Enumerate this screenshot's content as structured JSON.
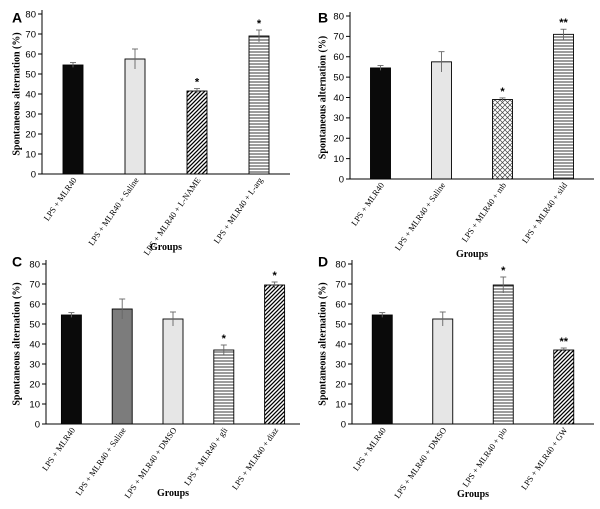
{
  "chart_data": [
    {
      "panel": "A",
      "type": "bar",
      "ylabel": "Spontaneous alternation (%)",
      "xlabel": "Groups",
      "ylim": [
        0,
        80
      ],
      "yticks": [
        0,
        10,
        20,
        30,
        40,
        50,
        60,
        70,
        80
      ],
      "categories": [
        "LPS + MLR40",
        "LPS + MLR40 + Saline",
        "LPS + MLR40 + L-NAME",
        "LPS + MLR40 + L-arg"
      ],
      "values": [
        54.5,
        57.5,
        41.5,
        69
      ],
      "errors": [
        1.2,
        5,
        1.2,
        3
      ],
      "significance": [
        "",
        "",
        "*",
        "*"
      ],
      "patterns": [
        "black",
        "lightgray",
        "diag",
        "hlines"
      ]
    },
    {
      "panel": "B",
      "type": "bar",
      "ylabel": "Spontaneous alternation (%)",
      "xlabel": "Groups",
      "ylim": [
        0,
        80
      ],
      "yticks": [
        0,
        10,
        20,
        30,
        40,
        50,
        60,
        70,
        80
      ],
      "categories": [
        "LPS + MLR40",
        "LPS + MLR40 + Saline",
        "LPS + MLR40 + mb",
        "LPS + MLR40 + sild"
      ],
      "values": [
        54.5,
        57.5,
        39,
        71
      ],
      "errors": [
        1.2,
        5,
        0.8,
        2.5
      ],
      "significance": [
        "",
        "",
        "*",
        "**"
      ],
      "patterns": [
        "black",
        "lightgray",
        "crosshatch",
        "hlines"
      ]
    },
    {
      "panel": "C",
      "type": "bar",
      "ylabel": "Spontaneous alternation (%)",
      "xlabel": "Groups",
      "ylim": [
        0,
        80
      ],
      "yticks": [
        0,
        10,
        20,
        30,
        40,
        50,
        60,
        70,
        80
      ],
      "categories": [
        "LPS + MLR40",
        "LPS + MLR40 + Saline",
        "LPS + MLR40 + DMSO",
        "LPS + MLR40 + gli",
        "LPS + MLR40 + diaz"
      ],
      "values": [
        54.5,
        57.5,
        52.5,
        37,
        69.5
      ],
      "errors": [
        1.2,
        5,
        3.5,
        2.5,
        1.5
      ],
      "significance": [
        "",
        "",
        "",
        "*",
        "*"
      ],
      "patterns": [
        "black",
        "darkgray",
        "lightgray",
        "hlines",
        "diag"
      ]
    },
    {
      "panel": "D",
      "type": "bar",
      "ylabel": "Spontaneous alternation (%)",
      "xlabel": "Groups",
      "ylim": [
        0,
        80
      ],
      "yticks": [
        0,
        10,
        20,
        30,
        40,
        50,
        60,
        70,
        80
      ],
      "categories": [
        "LPS + MLR40",
        "LPS + MLR40 + DMSO",
        "LPS + MLR40 + pio",
        "LPS + MLR40 + GW"
      ],
      "values": [
        54.5,
        52.5,
        69.5,
        37
      ],
      "errors": [
        1.2,
        3.5,
        4,
        1
      ],
      "significance": [
        "",
        "",
        "*",
        "**"
      ],
      "patterns": [
        "black",
        "lightgray",
        "hlines",
        "diag"
      ]
    }
  ]
}
